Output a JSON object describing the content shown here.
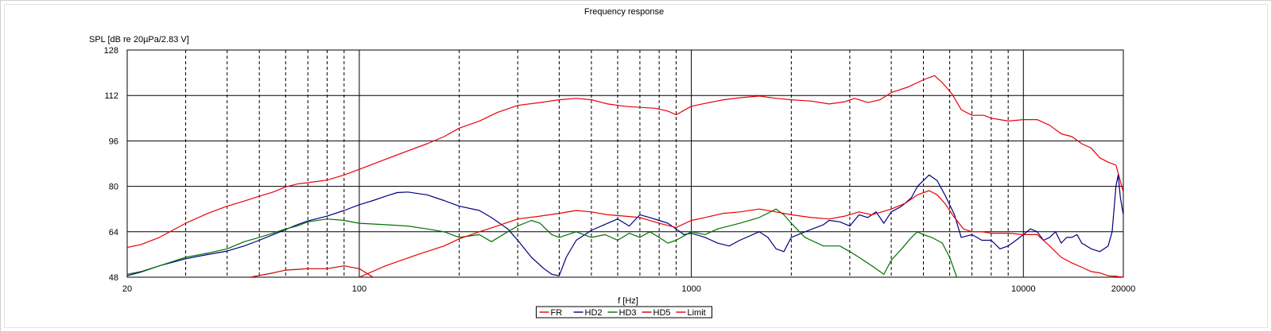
{
  "chart_data": {
    "type": "line",
    "title": "Frequency response",
    "xlabel": "f [Hz]",
    "ylabel": "SPL [dB re 20µPa/2.83 V]",
    "x_scale": "log",
    "xlim": [
      20,
      20000
    ],
    "ylim": [
      48,
      128
    ],
    "x_tick_labels": [
      {
        "value": 20,
        "label": "20"
      },
      {
        "value": 100,
        "label": "100"
      },
      {
        "value": 1000,
        "label": "1000"
      },
      {
        "value": 10000,
        "label": "10000"
      },
      {
        "value": 20000,
        "label": "20000"
      }
    ],
    "y_ticks": [
      48,
      64,
      80,
      96,
      112,
      128
    ],
    "grid": true,
    "legend_position": "bottom-center",
    "series": [
      {
        "name": "FR",
        "color": "#e8000b",
        "points": [
          [
            20,
            58.5
          ],
          [
            22,
            59.5
          ],
          [
            25,
            62
          ],
          [
            30,
            67
          ],
          [
            35,
            70.5
          ],
          [
            40,
            73
          ],
          [
            45,
            74.8
          ],
          [
            50,
            76.5
          ],
          [
            55,
            78
          ],
          [
            60,
            79.8
          ],
          [
            65,
            80.8
          ],
          [
            70,
            81.3
          ],
          [
            80,
            82.2
          ],
          [
            90,
            84
          ],
          [
            100,
            86
          ],
          [
            120,
            89.5
          ],
          [
            140,
            92.5
          ],
          [
            160,
            95
          ],
          [
            180,
            97.5
          ],
          [
            200,
            100.5
          ],
          [
            230,
            103
          ],
          [
            260,
            106
          ],
          [
            300,
            108.5
          ],
          [
            350,
            109.5
          ],
          [
            400,
            110.5
          ],
          [
            450,
            111
          ],
          [
            500,
            110.5
          ],
          [
            560,
            109
          ],
          [
            630,
            108.2
          ],
          [
            700,
            107.8
          ],
          [
            780,
            107.5
          ],
          [
            850,
            106.5
          ],
          [
            900,
            105.2
          ],
          [
            1000,
            108.2
          ],
          [
            1100,
            109.2
          ],
          [
            1250,
            110.5
          ],
          [
            1400,
            111.2
          ],
          [
            1600,
            111.8
          ],
          [
            1800,
            111
          ],
          [
            2000,
            110.5
          ],
          [
            2300,
            110
          ],
          [
            2600,
            109
          ],
          [
            2900,
            109.8
          ],
          [
            3100,
            111
          ],
          [
            3400,
            109.5
          ],
          [
            3700,
            110.5
          ],
          [
            4000,
            113
          ],
          [
            4500,
            115
          ],
          [
            5000,
            117.5
          ],
          [
            5400,
            119
          ],
          [
            5700,
            116.5
          ],
          [
            6100,
            112.5
          ],
          [
            6500,
            107
          ],
          [
            7000,
            105
          ],
          [
            7600,
            105
          ],
          [
            8000,
            104
          ],
          [
            8500,
            103.5
          ],
          [
            9000,
            103
          ],
          [
            10000,
            103.5
          ],
          [
            11000,
            103.5
          ],
          [
            12000,
            101.5
          ],
          [
            13000,
            98.5
          ],
          [
            14000,
            97.5
          ],
          [
            15000,
            95
          ],
          [
            16000,
            93.5
          ],
          [
            17000,
            90
          ],
          [
            18000,
            88.5
          ],
          [
            19000,
            87.5
          ],
          [
            20000,
            78
          ]
        ]
      },
      {
        "name": "HD2",
        "color": "#000080",
        "points": [
          [
            20,
            48.5
          ],
          [
            22,
            49.8
          ],
          [
            25,
            52
          ],
          [
            30,
            54.5
          ],
          [
            35,
            56
          ],
          [
            40,
            57.2
          ],
          [
            45,
            59
          ],
          [
            50,
            61
          ],
          [
            55,
            63
          ],
          [
            60,
            64.8
          ],
          [
            65,
            66.5
          ],
          [
            70,
            67.8
          ],
          [
            80,
            69.5
          ],
          [
            90,
            71.5
          ],
          [
            100,
            73.5
          ],
          [
            110,
            75
          ],
          [
            120,
            76.5
          ],
          [
            130,
            77.8
          ],
          [
            140,
            78
          ],
          [
            160,
            77
          ],
          [
            180,
            75
          ],
          [
            200,
            73
          ],
          [
            230,
            71.5
          ],
          [
            250,
            69
          ],
          [
            280,
            65
          ],
          [
            300,
            61
          ],
          [
            330,
            55
          ],
          [
            360,
            51
          ],
          [
            380,
            49
          ],
          [
            400,
            48.5
          ],
          [
            420,
            55
          ],
          [
            450,
            61
          ],
          [
            500,
            64.5
          ],
          [
            560,
            67
          ],
          [
            600,
            68.5
          ],
          [
            650,
            66
          ],
          [
            700,
            70
          ],
          [
            750,
            69
          ],
          [
            800,
            68
          ],
          [
            850,
            67
          ],
          [
            900,
            65
          ],
          [
            950,
            63
          ],
          [
            1000,
            63.5
          ],
          [
            1100,
            62
          ],
          [
            1200,
            60
          ],
          [
            1300,
            59
          ],
          [
            1400,
            61
          ],
          [
            1600,
            64
          ],
          [
            1700,
            62
          ],
          [
            1800,
            58
          ],
          [
            1900,
            57
          ],
          [
            2000,
            62
          ],
          [
            2200,
            64
          ],
          [
            2500,
            66.5
          ],
          [
            2600,
            68
          ],
          [
            2800,
            67.5
          ],
          [
            3000,
            66
          ],
          [
            3200,
            70
          ],
          [
            3400,
            69
          ],
          [
            3600,
            71
          ],
          [
            3800,
            67
          ],
          [
            4000,
            71
          ],
          [
            4300,
            73
          ],
          [
            4600,
            76
          ],
          [
            4800,
            80
          ],
          [
            5200,
            84
          ],
          [
            5500,
            82
          ],
          [
            5800,
            77
          ],
          [
            6200,
            70
          ],
          [
            6500,
            62
          ],
          [
            7000,
            63
          ],
          [
            7500,
            61
          ],
          [
            8000,
            61
          ],
          [
            8500,
            58
          ],
          [
            9000,
            59
          ],
          [
            9500,
            61
          ],
          [
            10000,
            63
          ],
          [
            10500,
            65
          ],
          [
            11000,
            64
          ],
          [
            11500,
            61
          ],
          [
            12000,
            62
          ],
          [
            12500,
            64
          ],
          [
            13000,
            60
          ],
          [
            13500,
            62
          ],
          [
            14000,
            62
          ],
          [
            14500,
            63
          ],
          [
            15000,
            60
          ],
          [
            16000,
            58
          ],
          [
            17000,
            57
          ],
          [
            18000,
            59
          ],
          [
            18500,
            64
          ],
          [
            19000,
            80
          ],
          [
            19300,
            84
          ],
          [
            19600,
            76
          ],
          [
            20000,
            70
          ]
        ]
      },
      {
        "name": "HD3",
        "color": "#007000",
        "points": [
          [
            20,
            49
          ],
          [
            22,
            50
          ],
          [
            25,
            52
          ],
          [
            30,
            55
          ],
          [
            35,
            56.5
          ],
          [
            40,
            58
          ],
          [
            45,
            60.5
          ],
          [
            50,
            62
          ],
          [
            55,
            63.5
          ],
          [
            60,
            65
          ],
          [
            65,
            66
          ],
          [
            70,
            67.5
          ],
          [
            80,
            68.5
          ],
          [
            90,
            68
          ],
          [
            100,
            67
          ],
          [
            120,
            66.5
          ],
          [
            140,
            66
          ],
          [
            160,
            65
          ],
          [
            180,
            64
          ],
          [
            200,
            62
          ],
          [
            230,
            63
          ],
          [
            250,
            60.5
          ],
          [
            280,
            64
          ],
          [
            300,
            66
          ],
          [
            330,
            68
          ],
          [
            350,
            67
          ],
          [
            380,
            63
          ],
          [
            400,
            62
          ],
          [
            450,
            64
          ],
          [
            500,
            62
          ],
          [
            550,
            63
          ],
          [
            600,
            61
          ],
          [
            650,
            63.5
          ],
          [
            700,
            62
          ],
          [
            750,
            64
          ],
          [
            800,
            62
          ],
          [
            850,
            60
          ],
          [
            900,
            61
          ],
          [
            1000,
            64
          ],
          [
            1100,
            63
          ],
          [
            1200,
            65
          ],
          [
            1400,
            67
          ],
          [
            1600,
            69
          ],
          [
            1800,
            72
          ],
          [
            1900,
            70
          ],
          [
            2000,
            67
          ],
          [
            2200,
            62
          ],
          [
            2500,
            59
          ],
          [
            2800,
            59
          ],
          [
            3000,
            57
          ],
          [
            3200,
            55
          ],
          [
            3500,
            52
          ],
          [
            3700,
            50
          ],
          [
            3800,
            49
          ],
          [
            4000,
            54
          ],
          [
            4300,
            58
          ],
          [
            4600,
            62
          ],
          [
            4800,
            64
          ],
          [
            5000,
            63
          ],
          [
            5300,
            62
          ],
          [
            5700,
            60
          ],
          [
            6000,
            55
          ],
          [
            6300,
            48
          ]
        ]
      },
      {
        "name": "HD5",
        "color": "#c80000",
        "points": [
          [
            47,
            48
          ],
          [
            55,
            49.5
          ],
          [
            60,
            50.5
          ],
          [
            70,
            51
          ],
          [
            80,
            51
          ],
          [
            90,
            52
          ],
          [
            100,
            51
          ],
          [
            110,
            48
          ]
        ]
      },
      {
        "name": "Limit",
        "color": "#e80000",
        "points": [
          [
            100,
            48
          ],
          [
            120,
            52
          ],
          [
            150,
            56
          ],
          [
            180,
            59
          ],
          [
            200,
            61.5
          ],
          [
            230,
            64
          ],
          [
            260,
            66
          ],
          [
            300,
            68.5
          ],
          [
            350,
            69.5
          ],
          [
            400,
            70.5
          ],
          [
            450,
            71.5
          ],
          [
            500,
            71
          ],
          [
            560,
            70
          ],
          [
            630,
            69.5
          ],
          [
            700,
            69
          ],
          [
            800,
            67
          ],
          [
            900,
            65.5
          ],
          [
            1000,
            68
          ],
          [
            1100,
            69
          ],
          [
            1250,
            70.5
          ],
          [
            1400,
            71
          ],
          [
            1600,
            72
          ],
          [
            1800,
            71
          ],
          [
            2000,
            70
          ],
          [
            2300,
            69
          ],
          [
            2600,
            68.5
          ],
          [
            2900,
            69.5
          ],
          [
            3200,
            71
          ],
          [
            3500,
            70
          ],
          [
            4000,
            72
          ],
          [
            4400,
            74
          ],
          [
            4800,
            77
          ],
          [
            5200,
            78.5
          ],
          [
            5500,
            77
          ],
          [
            5800,
            74
          ],
          [
            6200,
            69
          ],
          [
            6600,
            65
          ],
          [
            7000,
            64
          ],
          [
            7500,
            64
          ],
          [
            8000,
            63.5
          ],
          [
            9000,
            63.5
          ],
          [
            10000,
            63
          ],
          [
            11000,
            63
          ],
          [
            12000,
            59
          ],
          [
            13000,
            55
          ],
          [
            14000,
            53
          ],
          [
            15000,
            51.5
          ],
          [
            16000,
            50
          ],
          [
            17000,
            49.5
          ],
          [
            18000,
            48.5
          ],
          [
            19000,
            48.3
          ],
          [
            20000,
            48
          ]
        ]
      }
    ]
  }
}
